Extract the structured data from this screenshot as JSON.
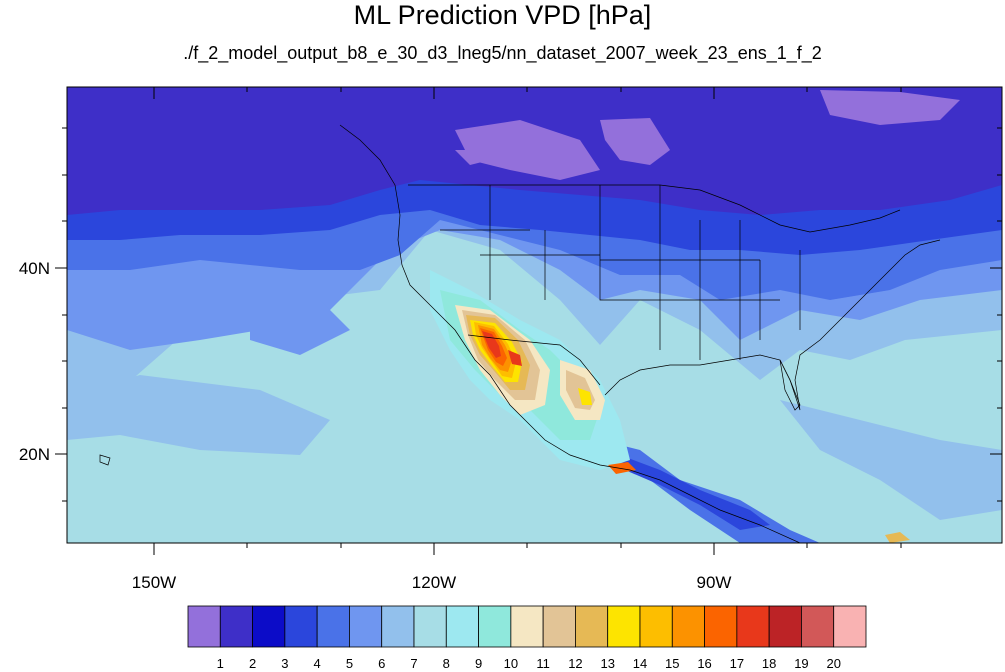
{
  "title": "ML Prediction VPD [hPa]",
  "subtitle": "./f_2_model_output_b8_e_30_d3_lneg5/nn_dataset_2007_week_23_ens_1_f_2",
  "axes": {
    "lon_labels": [
      "150W",
      "120W",
      "90W"
    ],
    "lat_labels": [
      "40N",
      "20N"
    ]
  },
  "colorbar": {
    "labels": [
      "1",
      "2",
      "3",
      "4",
      "5",
      "6",
      "7",
      "8",
      "9",
      "10",
      "11",
      "12",
      "13",
      "14",
      "15",
      "16",
      "17",
      "18",
      "19",
      "20"
    ],
    "colors": [
      "#9370db",
      "#3e2fc8",
      "#0c0cc8",
      "#2b46dc",
      "#4a72e8",
      "#6f96f0",
      "#92c0ec",
      "#a7dde6",
      "#9de8f0",
      "#8fe8dc",
      "#f5e7c3",
      "#e2c496",
      "#e6b955",
      "#fde400",
      "#fdbe00",
      "#fc9200",
      "#fb6400",
      "#e8381b",
      "#bc2326",
      "#d25858",
      "#f9b2b2"
    ]
  },
  "chart_data": {
    "type": "heatmap",
    "variable": "VPD [hPa]",
    "lon_range_deg": [
      -160,
      -60
    ],
    "lat_range_deg": [
      10,
      60
    ],
    "color_levels": [
      1,
      2,
      3,
      4,
      5,
      6,
      7,
      8,
      9,
      10,
      11,
      12,
      13,
      14,
      15,
      16,
      17,
      18,
      19,
      20
    ],
    "max_region": "southwestern US / Baja California, values up to ~17-18 hPa",
    "min_region": "northern Pacific and Canada, values ~1-3 hPa"
  }
}
